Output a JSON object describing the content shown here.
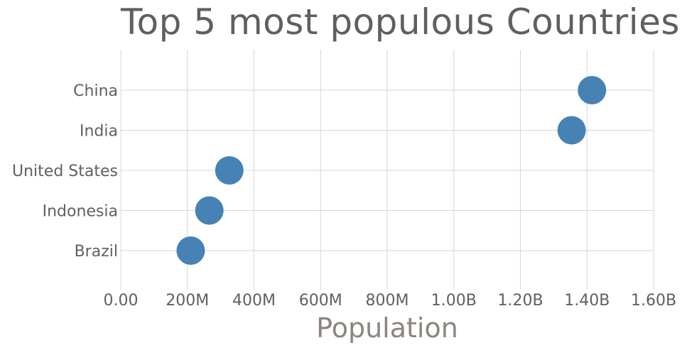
{
  "chart_data": {
    "type": "scatter",
    "title": "Top 5 most populous Countries",
    "xlabel": "Population",
    "ylabel": "",
    "categories": [
      "China",
      "India",
      "United States",
      "Indonesia",
      "Brazil"
    ],
    "values": [
      1415000000,
      1354000000,
      326000000,
      266000000,
      210000000
    ],
    "xlim": [
      0,
      1600000000
    ],
    "x_ticks": [
      {
        "value": 0,
        "label": "0.00"
      },
      {
        "value": 200000000,
        "label": "200M"
      },
      {
        "value": 400000000,
        "label": "400M"
      },
      {
        "value": 600000000,
        "label": "600M"
      },
      {
        "value": 800000000,
        "label": "800M"
      },
      {
        "value": 1000000000,
        "label": "1.00B"
      },
      {
        "value": 1200000000,
        "label": "1.20B"
      },
      {
        "value": 1400000000,
        "label": "1.40B"
      },
      {
        "value": 1600000000,
        "label": "1.60B"
      }
    ],
    "grid": true,
    "marker_color": "#4682b4"
  }
}
